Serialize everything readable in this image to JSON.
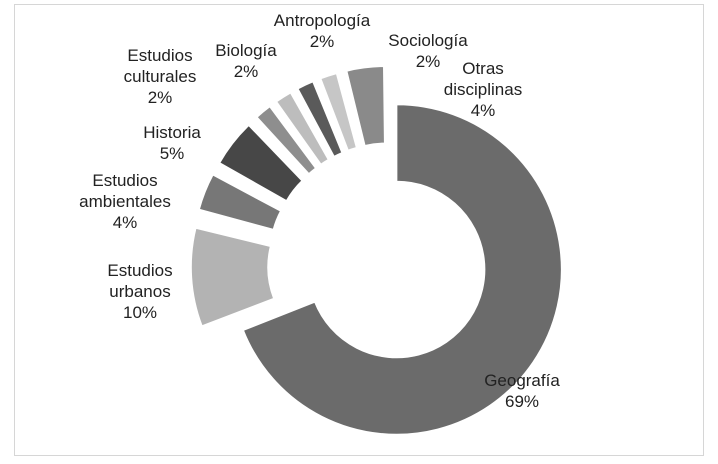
{
  "chart_data": {
    "type": "donut",
    "categories": [
      "Geografía",
      "Estudios urbanos",
      "Estudios ambientales",
      "Historia",
      "Estudios culturales",
      "Biología",
      "Antropología",
      "Sociología",
      "Otras disciplinas"
    ],
    "values": [
      69,
      10,
      4,
      5,
      2,
      2,
      2,
      2,
      4
    ],
    "value_labels": [
      "69%",
      "10%",
      "4%",
      "5%",
      "2%",
      "2%",
      "2%",
      "2%",
      "4%"
    ],
    "colors": [
      "#6b6b6b",
      "#b3b3b3",
      "#777777",
      "#474747",
      "#8e8e8e",
      "#bdbdbd",
      "#5a5a5a",
      "#c6c6c6",
      "#8a8a8a"
    ]
  }
}
